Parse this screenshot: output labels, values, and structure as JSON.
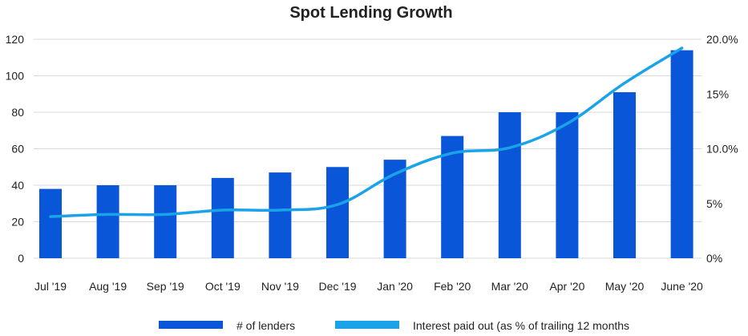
{
  "chart_data": {
    "type": "bar",
    "title": "Spot Lending Growth",
    "categories": [
      "Jul '19",
      "Aug '19",
      "Sep '19",
      "Oct '19",
      "Nov '19",
      "Dec '19",
      "Jan '20",
      "Feb '20",
      "Mar '20",
      "Apr '20",
      "May '20",
      "June '20"
    ],
    "series": [
      {
        "name": "# of lenders",
        "kind": "bar",
        "axis": "left",
        "color": "#0a56d9",
        "values": [
          38,
          40,
          40,
          44,
          47,
          50,
          54,
          67,
          80,
          80,
          91,
          114
        ]
      },
      {
        "name": "Interest paid out (as % of trailing 12 months",
        "kind": "line",
        "axis": "right",
        "color": "#1aa3e8",
        "values": [
          3.8,
          4.0,
          4.0,
          4.4,
          4.4,
          4.9,
          7.7,
          9.6,
          10.1,
          12.3,
          16.0,
          19.2
        ]
      }
    ],
    "y_left": {
      "lim": [
        0,
        120
      ],
      "ticks": [
        0,
        20,
        40,
        60,
        80,
        100,
        120
      ],
      "tick_labels": [
        "0",
        "20",
        "40",
        "60",
        "80",
        "100",
        "120"
      ]
    },
    "y_right": {
      "lim": [
        0,
        20
      ],
      "ticks": [
        0,
        5,
        10,
        15,
        20
      ],
      "tick_labels": [
        "0%",
        "5%",
        "10.0%",
        "15%",
        "20.0%"
      ]
    },
    "grid": true,
    "legend_position": "bottom"
  }
}
